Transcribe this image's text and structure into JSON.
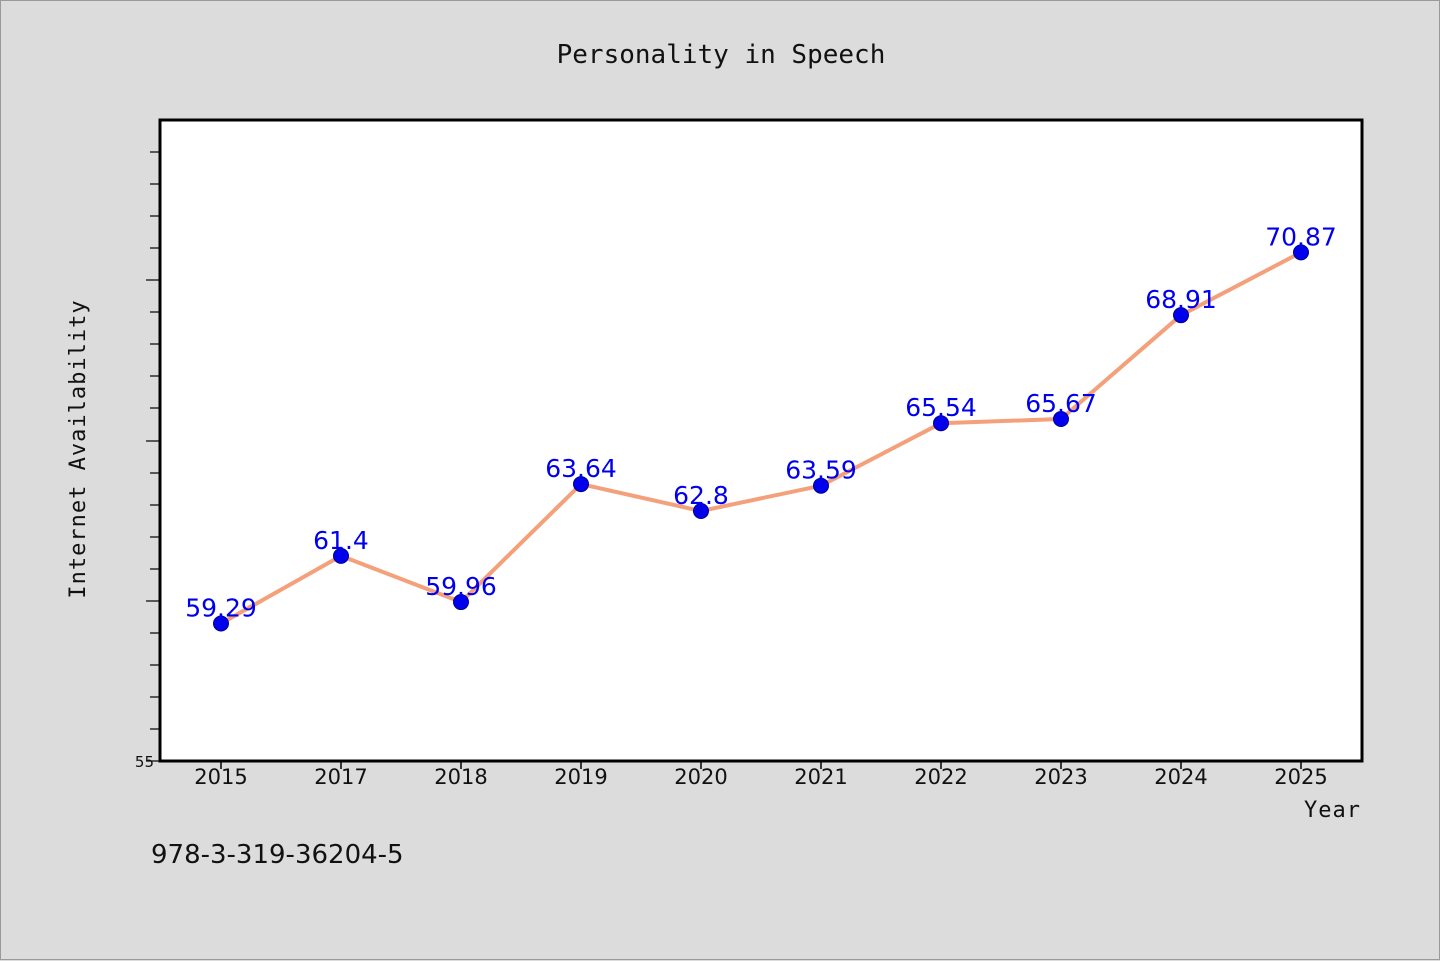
{
  "chart_data": {
    "type": "line",
    "title": "Personality in Speech",
    "xlabel": "Year",
    "ylabel": "Internet Availability",
    "categories": [
      "2015",
      "2017",
      "2018",
      "2019",
      "2020",
      "2021",
      "2022",
      "2023",
      "2024",
      "2025"
    ],
    "series": [
      {
        "values": [
          59.29,
          61.4,
          59.96,
          63.64,
          62.8,
          63.59,
          65.54,
          65.67,
          68.91,
          70.87
        ],
        "labels": [
          "59.29",
          "61.4",
          "59.96",
          "63.64",
          "62.8",
          "63.59",
          "65.54",
          "65.67",
          "68.91",
          "70.87"
        ]
      }
    ],
    "ylim": [
      55,
      75
    ],
    "y_tick_labels": [
      "55"
    ],
    "grid": false,
    "line_color": "#f4a07a",
    "marker_color": "#0000ee",
    "label_color": "#0000ee"
  },
  "footnote": "978-3-319-36204-5"
}
